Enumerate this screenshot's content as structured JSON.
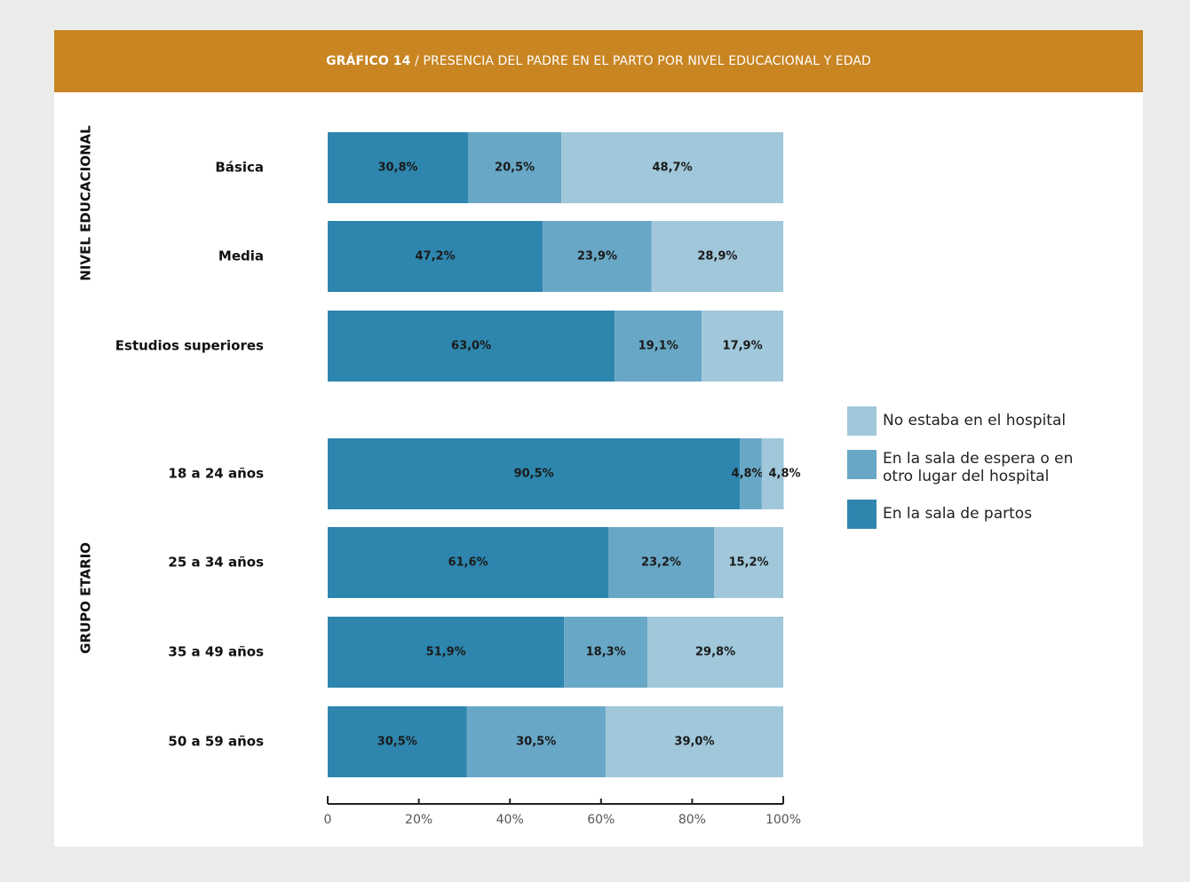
{
  "header": {
    "title_bold": "GRÁFICO 14",
    "title_rest": " / PRESENCIA DEL PADRE EN EL PARTO POR NIVEL EDUCACIONAL Y EDAD"
  },
  "colors": {
    "header": "#c88522",
    "background": "#ebebeb",
    "sala_partos": "#2e86ae",
    "sala_espera": "#68a7c6",
    "no_hospital": "#a0c7da"
  },
  "chart_data": {
    "type": "bar",
    "orientation": "horizontal",
    "stacked": true,
    "groups": [
      {
        "name": "NIVEL EDUCACIONAL",
        "categories": [
          "Básica",
          "Media",
          "Estudios superiores"
        ]
      },
      {
        "name": "GRUPO ETARIO",
        "categories": [
          "18 a 24 años",
          "25 a 34 años",
          "35 a 49 años",
          "50 a 59 años"
        ]
      }
    ],
    "categories": [
      "Básica",
      "Media",
      "Estudios superiores",
      "18 a 24 años",
      "25 a 34 años",
      "35 a 49 años",
      "50 a 59 años"
    ],
    "series": [
      {
        "name": "En la sala de partos",
        "color": "#2e86ae",
        "values": [
          30.8,
          47.2,
          63.0,
          90.5,
          61.6,
          51.9,
          30.5
        ],
        "labels": [
          "30,8%",
          "47,2%",
          "63,0%",
          "90,5%",
          "61,6%",
          "51,9%",
          "30,5%"
        ]
      },
      {
        "name": "En la sala de espera o en otro lugar del hospital",
        "color": "#68a7c6",
        "values": [
          20.5,
          23.9,
          19.1,
          4.8,
          23.2,
          18.3,
          30.5
        ],
        "labels": [
          "20,5%",
          "23,9%",
          "19,1%",
          "4,8%",
          "23,2%",
          "18,3%",
          "30,5%"
        ]
      },
      {
        "name": "No estaba en el hospital",
        "color": "#a0c7da",
        "values": [
          48.7,
          28.9,
          17.9,
          4.8,
          15.2,
          29.8,
          39.0
        ],
        "labels": [
          "48,7%",
          "28,9%",
          "17,9%",
          "4,8%",
          "15,2%",
          "29,8%",
          "39,0%"
        ]
      }
    ],
    "xlim": [
      0,
      100
    ],
    "xticks": [
      "0",
      "20%",
      "40%",
      "60%",
      "80%",
      "100%"
    ],
    "legend_position": "right",
    "grid": false
  },
  "legend": [
    {
      "label": "No estaba en el hospital",
      "color": "#a0c7da"
    },
    {
      "label": "En la sala de espera o en\notro lugar del hospital",
      "color": "#68a7c6"
    },
    {
      "label": "En la sala de partos",
      "color": "#2e86ae"
    }
  ]
}
